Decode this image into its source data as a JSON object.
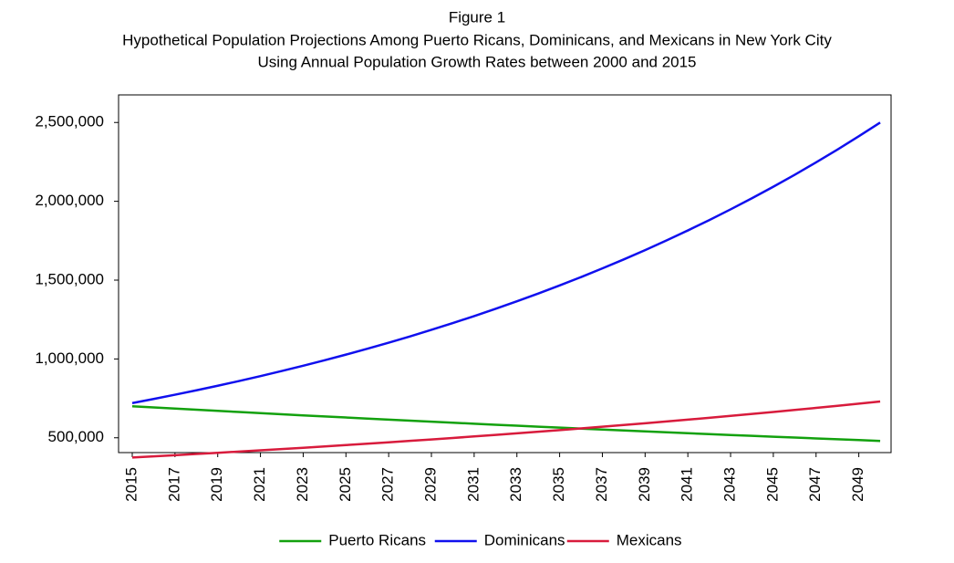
{
  "chart_data": {
    "type": "line",
    "title": [
      "Figure 1",
      "Hypothetical Population Projections Among Puerto Ricans, Dominicans, and Mexicans in New York City",
      "Using Annual Population Growth Rates between 2000 and 2015"
    ],
    "x": [
      2015,
      2016,
      2017,
      2018,
      2019,
      2020,
      2021,
      2022,
      2023,
      2024,
      2025,
      2026,
      2027,
      2028,
      2029,
      2030,
      2031,
      2032,
      2033,
      2034,
      2035,
      2036,
      2037,
      2038,
      2039,
      2040,
      2041,
      2042,
      2043,
      2044,
      2045,
      2046,
      2047,
      2048,
      2049,
      2050
    ],
    "series": [
      {
        "name": "Puerto Ricans",
        "color": "#13a10e",
        "values": [
          700000,
          692500,
          685100,
          677700,
          670500,
          663300,
          656200,
          649200,
          642200,
          635300,
          628500,
          621800,
          615100,
          608500,
          602000,
          595500,
          589100,
          582800,
          576600,
          570400,
          564300,
          558200,
          552200,
          546300,
          540500,
          534700,
          528900,
          523300,
          517700,
          512100,
          506600,
          501200,
          495800,
          490500,
          485300,
          480100
        ]
      },
      {
        "name": "Dominicans",
        "color": "#1010ee",
        "values": [
          720000,
          746100,
          773100,
          801100,
          830100,
          860100,
          891300,
          923500,
          957000,
          991600,
          1027500,
          1064700,
          1103300,
          1143200,
          1184600,
          1227500,
          1271900,
          1318000,
          1365700,
          1415100,
          1466300,
          1519400,
          1574400,
          1631400,
          1690500,
          1751700,
          1815100,
          1880800,
          1948900,
          2019400,
          2092500,
          2168300,
          2246800,
          2328100,
          2412400,
          2499700
        ]
      },
      {
        "name": "Mexicans",
        "color": "#d81b3c",
        "values": [
          375000,
          382200,
          389500,
          397000,
          404700,
          412500,
          420400,
          428500,
          436700,
          445100,
          453600,
          462300,
          471200,
          480300,
          489500,
          498900,
          508500,
          518300,
          528200,
          538400,
          548700,
          559300,
          570000,
          581000,
          592100,
          603500,
          615100,
          626900,
          638900,
          651200,
          663700,
          676500,
          689500,
          702700,
          716200,
          730000
        ]
      }
    ],
    "xlim": [
      2014.36,
      2050.51
    ],
    "xticks": [
      2015,
      2017,
      2019,
      2021,
      2023,
      2025,
      2027,
      2029,
      2031,
      2033,
      2035,
      2037,
      2039,
      2041,
      2043,
      2045,
      2047,
      2049
    ],
    "ylim": [
      406000,
      2675000
    ],
    "yticks": [
      {
        "value": 500000,
        "label": "500,000"
      },
      {
        "value": 1000000,
        "label": "1,000,000"
      },
      {
        "value": 1500000,
        "label": "1,500,000"
      },
      {
        "value": 2000000,
        "label": "2,000,000"
      },
      {
        "value": 2500000,
        "label": "2,500,000"
      }
    ]
  }
}
